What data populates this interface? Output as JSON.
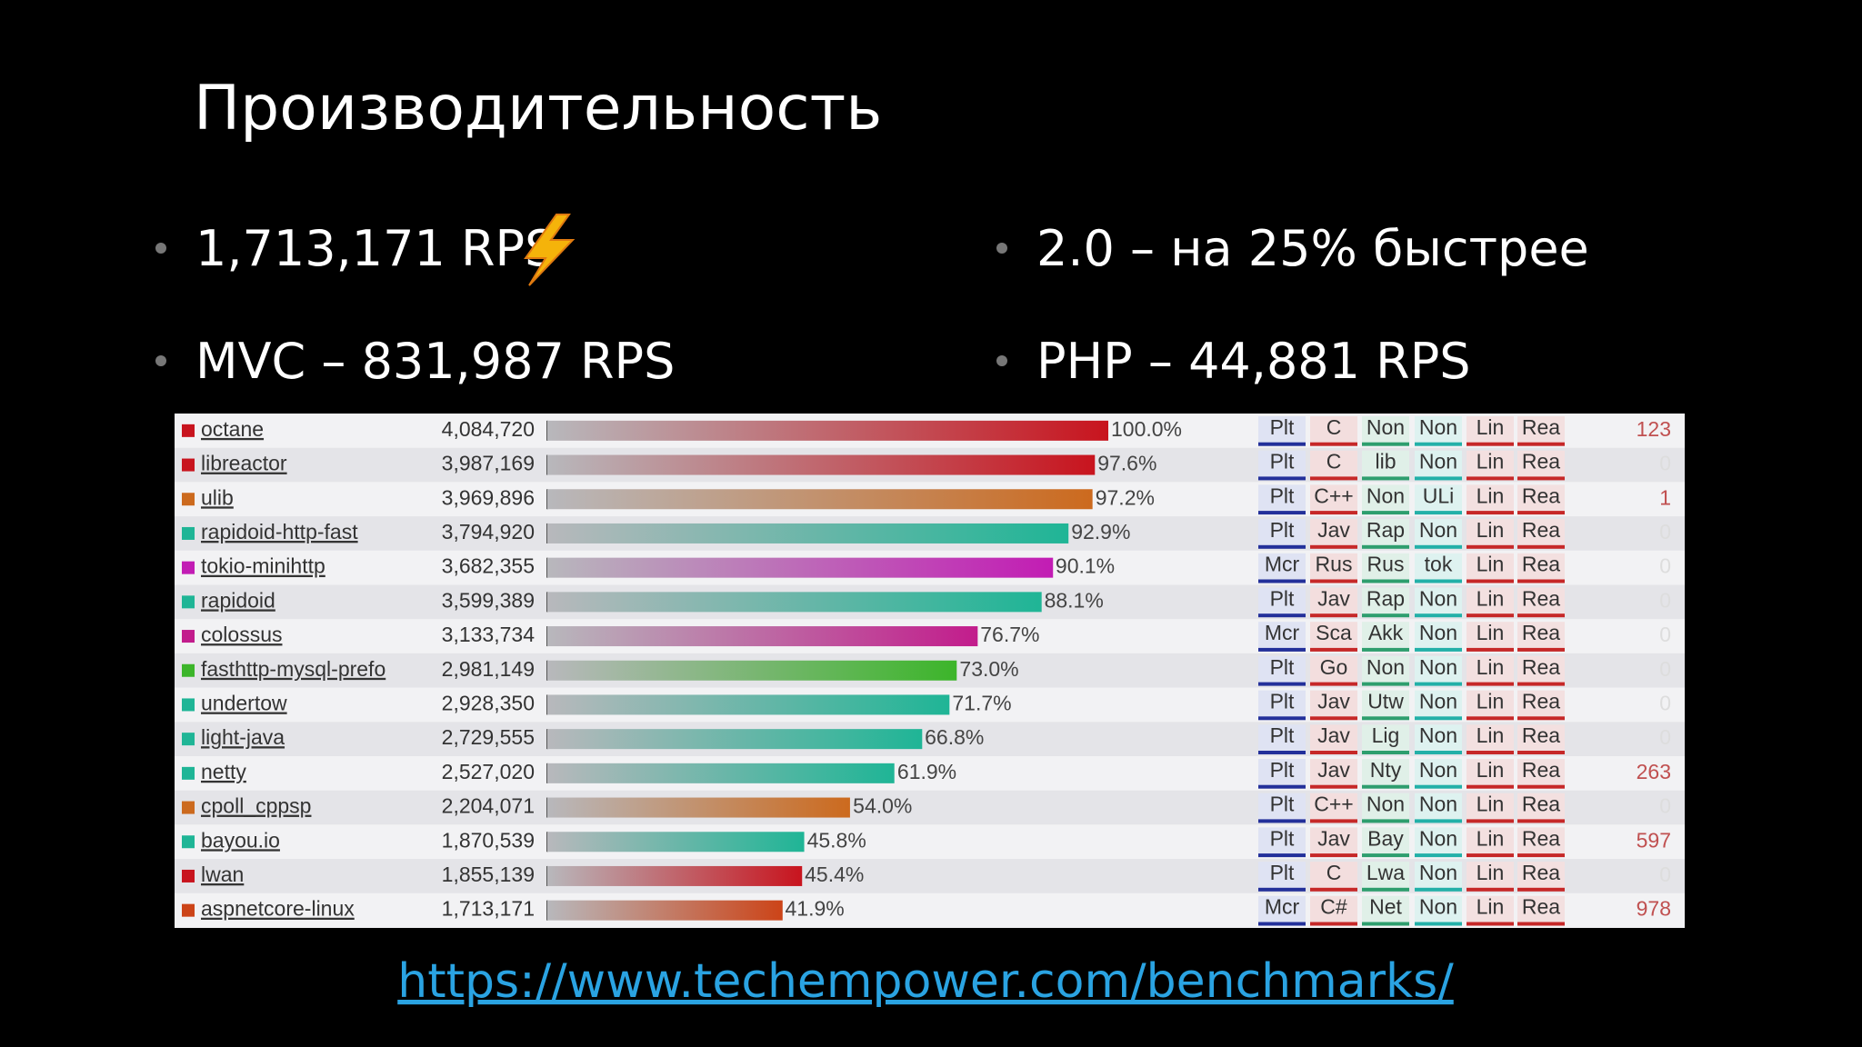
{
  "slide": {
    "title": "Производительность",
    "bullets": [
      "1,713,171 RPS",
      "2.0 – на 25% быстрее",
      "MVC – 831,987 RPS",
      "PHP – 44,881 RPS"
    ],
    "url": "https://www.techempower.com/benchmarks/"
  },
  "chart_data": {
    "type": "bar",
    "orientation": "horizontal",
    "categories": [
      "octane",
      "libreactor",
      "ulib",
      "rapidoid-http-fast",
      "tokio-minihttp",
      "rapidoid",
      "colossus",
      "fasthttp-mysql-prefo",
      "undertow",
      "light-java",
      "netty",
      "cpoll_cppsp",
      "bayou.io",
      "lwan",
      "aspnetcore-linux"
    ],
    "values": [
      4084720,
      3987169,
      3969896,
      3794920,
      3682355,
      3599389,
      3133734,
      2981149,
      2928350,
      2729555,
      2527020,
      2204071,
      1870539,
      1855139,
      1713171
    ],
    "value_labels": [
      "4,084,720",
      "3,987,169",
      "3,969,896",
      "3,794,920",
      "3,682,355",
      "3,599,389",
      "3,133,734",
      "2,981,149",
      "2,928,350",
      "2,729,555",
      "2,527,020",
      "2,204,071",
      "1,870,539",
      "1,855,139",
      "1,713,171"
    ],
    "xlim": [
      0,
      4084720
    ],
    "colors": [
      "#c8141e",
      "#c8141e",
      "#cc6a1e",
      "#1fb596",
      "#c21cb4",
      "#1fb596",
      "#c21c8c",
      "#3cb52a",
      "#1fb596",
      "#1fb596",
      "#1fb596",
      "#cc6a1e",
      "#1fb596",
      "#c8141e",
      "#cc4418"
    ],
    "relative": {
      "values": [
        100.0,
        97.6,
        97.2,
        92.9,
        90.1,
        88.1,
        76.7,
        73.0,
        71.7,
        66.8,
        61.9,
        54.0,
        45.8,
        45.4,
        41.9
      ],
      "value_labels": [
        "100.0%",
        "97.6%",
        "97.2%",
        "92.9%",
        "90.1%",
        "88.1%",
        "76.7%",
        "73.0%",
        "71.7%",
        "66.8%",
        "61.9%",
        "54.0%",
        "45.8%",
        "45.4%",
        "41.9%"
      ]
    },
    "tags": [
      [
        "Plt",
        "C",
        "Non",
        "Non",
        "Lin",
        "Rea"
      ],
      [
        "Plt",
        "C",
        "lib",
        "Non",
        "Lin",
        "Rea"
      ],
      [
        "Plt",
        "C++",
        "Non",
        "ULi",
        "Lin",
        "Rea"
      ],
      [
        "Plt",
        "Jav",
        "Rap",
        "Non",
        "Lin",
        "Rea"
      ],
      [
        "Mcr",
        "Rus",
        "Rus",
        "tok",
        "Lin",
        "Rea"
      ],
      [
        "Plt",
        "Jav",
        "Rap",
        "Non",
        "Lin",
        "Rea"
      ],
      [
        "Mcr",
        "Sca",
        "Akk",
        "Non",
        "Lin",
        "Rea"
      ],
      [
        "Plt",
        "Go",
        "Non",
        "Non",
        "Lin",
        "Rea"
      ],
      [
        "Plt",
        "Jav",
        "Utw",
        "Non",
        "Lin",
        "Rea"
      ],
      [
        "Plt",
        "Jav",
        "Lig",
        "Non",
        "Lin",
        "Rea"
      ],
      [
        "Plt",
        "Jav",
        "Nty",
        "Non",
        "Lin",
        "Rea"
      ],
      [
        "Plt",
        "C++",
        "Non",
        "Non",
        "Lin",
        "Rea"
      ],
      [
        "Plt",
        "Jav",
        "Bay",
        "Non",
        "Lin",
        "Rea"
      ],
      [
        "Plt",
        "C",
        "Lwa",
        "Non",
        "Lin",
        "Rea"
      ],
      [
        "Mcr",
        "C#",
        "Net",
        "Non",
        "Lin",
        "Rea"
      ]
    ],
    "errors": [
      123,
      0,
      1,
      0,
      0,
      0,
      0,
      0,
      0,
      0,
      263,
      0,
      597,
      0,
      978
    ]
  }
}
